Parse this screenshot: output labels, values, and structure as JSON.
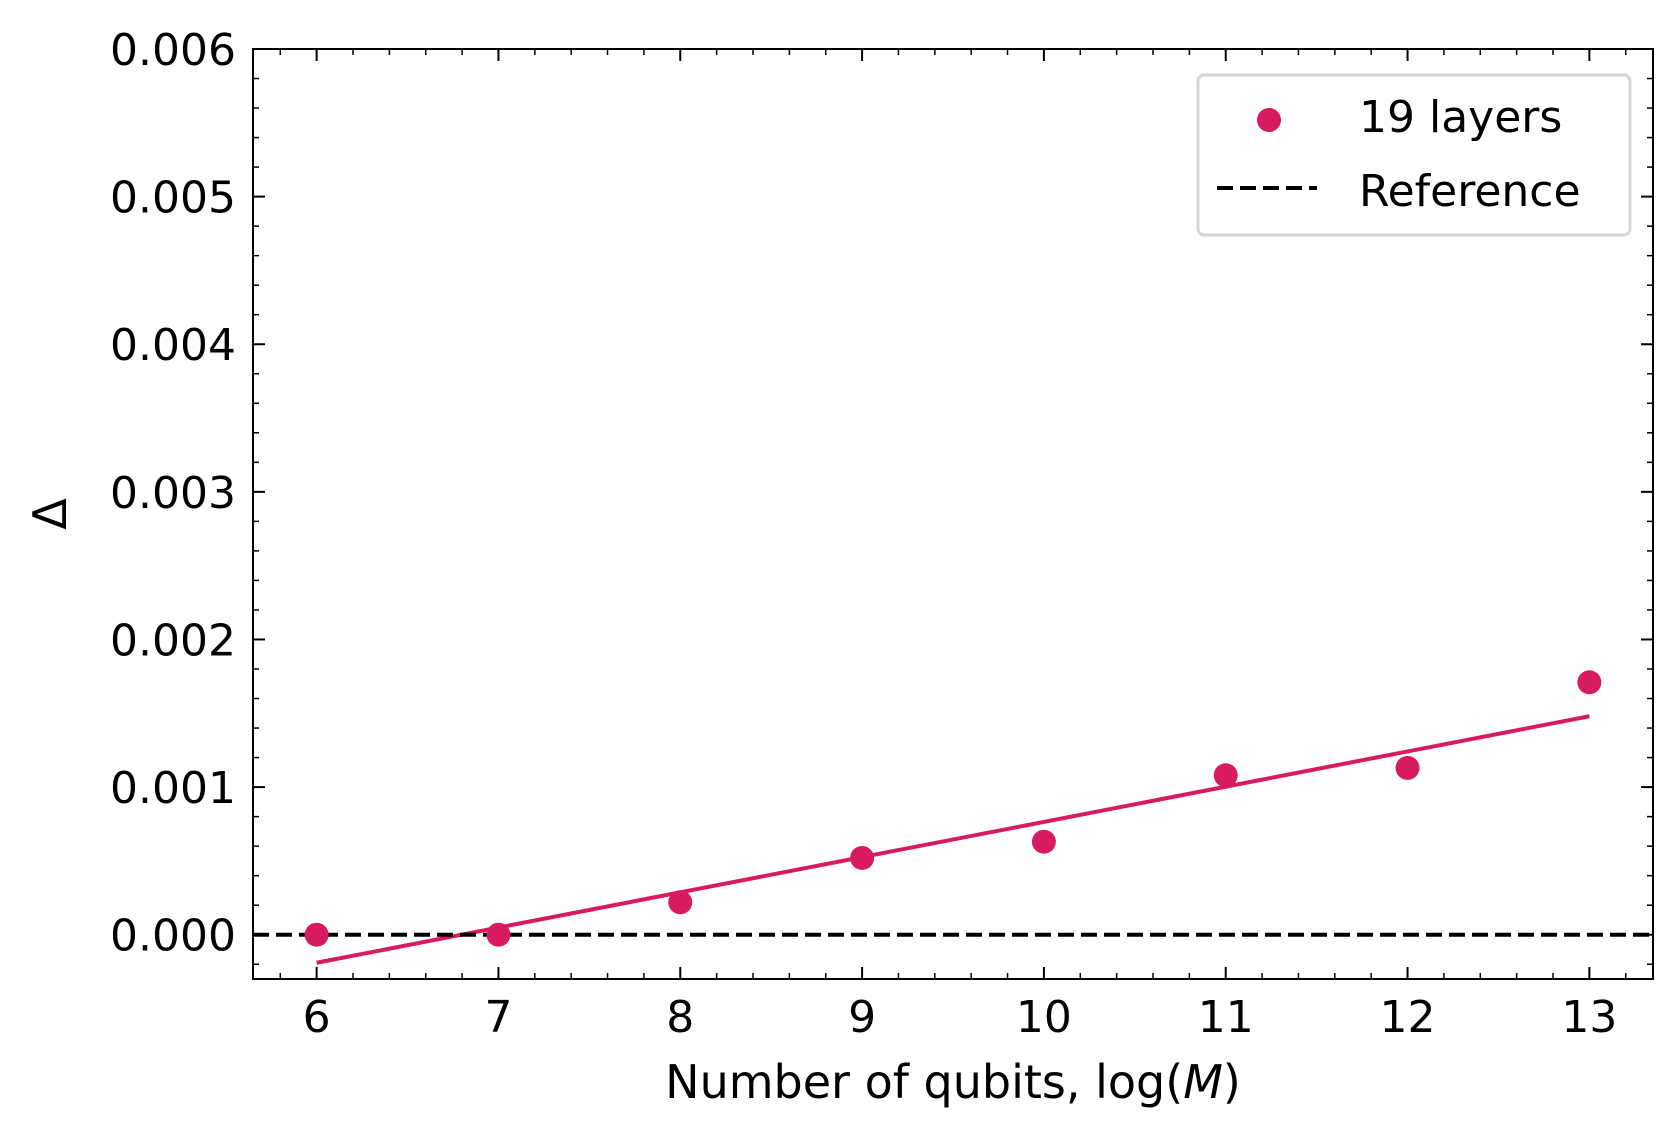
{
  "chart_data": {
    "type": "scatter",
    "title": "",
    "xlabel_prefix": "Number of qubits, log(",
    "xlabel_var": "M",
    "xlabel_suffix": ")",
    "ylabel": "Δ",
    "xlim": [
      5.65,
      13.35
    ],
    "ylim": [
      -0.0003,
      0.006
    ],
    "x_ticks": [
      6,
      7,
      8,
      9,
      10,
      11,
      12,
      13
    ],
    "x_tick_labels": [
      "6",
      "7",
      "8",
      "9",
      "10",
      "11",
      "12",
      "13"
    ],
    "y_ticks": [
      0.0,
      0.001,
      0.002,
      0.003,
      0.004,
      0.005,
      0.006
    ],
    "y_tick_labels": [
      "0.000",
      "0.001",
      "0.002",
      "0.003",
      "0.004",
      "0.005",
      "0.006"
    ],
    "grid": false,
    "legend_position": "top-right",
    "series": [
      {
        "name": "19 layers",
        "kind": "scatter",
        "color": "#d81b60",
        "x": [
          6,
          7,
          8,
          9,
          10,
          11,
          12,
          13
        ],
        "y": [
          0.0,
          0.0,
          0.00022,
          0.00052,
          0.00063,
          0.00108,
          0.00113,
          0.00171
        ]
      },
      {
        "name": "fit",
        "kind": "line",
        "color": "#d81b60",
        "x": [
          6,
          13
        ],
        "y": [
          -0.00019,
          0.00148
        ]
      },
      {
        "name": "Reference",
        "kind": "hline",
        "style": "dashed",
        "color": "#000000",
        "y": 0.0
      }
    ]
  }
}
